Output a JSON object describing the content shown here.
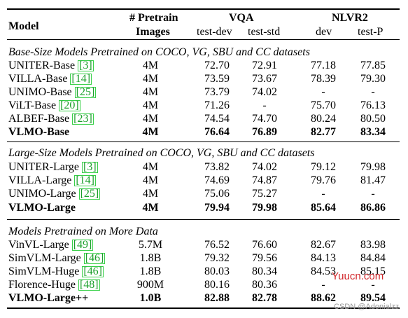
{
  "header": {
    "model": "Model",
    "pretrain_line1": "# Pretrain",
    "pretrain_line2": "Images",
    "vqa": "VQA",
    "nlvr2": "NLVR2",
    "vqa_sub": [
      "test-dev",
      "test-std"
    ],
    "nlvr2_sub": [
      "dev",
      "test-P"
    ]
  },
  "sections": [
    {
      "title": "Base-Size Models Pretrained on COCO, VG, SBU and CC datasets",
      "rows": [
        {
          "name": "UNITER-Base ",
          "ref": "[3]",
          "pretrain": "4M",
          "vqa_dev": "72.70",
          "vqa_std": "72.91",
          "nlvr_dev": "77.18",
          "nlvr_test": "77.85"
        },
        {
          "name": "VILLA-Base ",
          "ref": "[14]",
          "pretrain": "4M",
          "vqa_dev": "73.59",
          "vqa_std": "73.67",
          "nlvr_dev": "78.39",
          "nlvr_test": "79.30"
        },
        {
          "name": "UNIMO-Base ",
          "ref": "[25]",
          "pretrain": "4M",
          "vqa_dev": "73.79",
          "vqa_std": "74.02",
          "nlvr_dev": "-",
          "nlvr_test": "-"
        },
        {
          "name": "ViLT-Base ",
          "ref": "[20]",
          "pretrain": "4M",
          "vqa_dev": "71.26",
          "vqa_std": "-",
          "nlvr_dev": "75.70",
          "nlvr_test": "76.13"
        },
        {
          "name": "ALBEF-Base ",
          "ref": "[23]",
          "pretrain": "4M",
          "vqa_dev": "74.54",
          "vqa_std": "74.70",
          "nlvr_dev": "80.24",
          "nlvr_test": "80.50"
        },
        {
          "name": "VLMO-Base",
          "ref": "",
          "pretrain": "4M",
          "vqa_dev": "76.64",
          "vqa_std": "76.89",
          "nlvr_dev": "82.77",
          "nlvr_test": "83.34",
          "bold": true
        }
      ]
    },
    {
      "title": "Large-Size Models Pretrained on COCO, VG, SBU and CC datasets",
      "rows": [
        {
          "name": "UNITER-Large ",
          "ref": "[3]",
          "pretrain": "4M",
          "vqa_dev": "73.82",
          "vqa_std": "74.02",
          "nlvr_dev": "79.12",
          "nlvr_test": "79.98"
        },
        {
          "name": "VILLA-Large ",
          "ref": "[14]",
          "pretrain": "4M",
          "vqa_dev": "74.69",
          "vqa_std": "74.87",
          "nlvr_dev": "79.76",
          "nlvr_test": "81.47"
        },
        {
          "name": "UNIMO-Large ",
          "ref": "[25]",
          "pretrain": "4M",
          "vqa_dev": "75.06",
          "vqa_std": "75.27",
          "nlvr_dev": "-",
          "nlvr_test": "-"
        },
        {
          "name": "VLMO-Large",
          "ref": "",
          "pretrain": "4M",
          "vqa_dev": "79.94",
          "vqa_std": "79.98",
          "nlvr_dev": "85.64",
          "nlvr_test": "86.86",
          "bold": true
        }
      ]
    },
    {
      "title": "Models Pretrained on More Data",
      "rows": [
        {
          "name": "VinVL-Large ",
          "ref": "[49]",
          "pretrain": "5.7M",
          "vqa_dev": "76.52",
          "vqa_std": "76.60",
          "nlvr_dev": "82.67",
          "nlvr_test": "83.98"
        },
        {
          "name": "SimVLM-Large ",
          "ref": "[46]",
          "pretrain": "1.8B",
          "vqa_dev": "79.32",
          "vqa_std": "79.56",
          "nlvr_dev": "84.13",
          "nlvr_test": "84.84"
        },
        {
          "name": "SimVLM-Huge ",
          "ref": "[46]",
          "pretrain": "1.8B",
          "vqa_dev": "80.03",
          "vqa_std": "80.34",
          "nlvr_dev": "84.53",
          "nlvr_test": "85.15"
        },
        {
          "name": "Florence-Huge ",
          "ref": "[48]",
          "pretrain": "900M",
          "vqa_dev": "80.16",
          "vqa_std": "80.36",
          "nlvr_dev": "-",
          "nlvr_test": "-"
        },
        {
          "name": "VLMO-Large++",
          "ref": "",
          "pretrain": "1.0B",
          "vqa_dev": "82.88",
          "vqa_std": "82.78",
          "nlvr_dev": "88.62",
          "nlvr_test": "89.54",
          "bold": true
        }
      ]
    }
  ],
  "watermark": {
    "site": "Yuucn.com",
    "credit": "CSDN @Adonialzz"
  }
}
